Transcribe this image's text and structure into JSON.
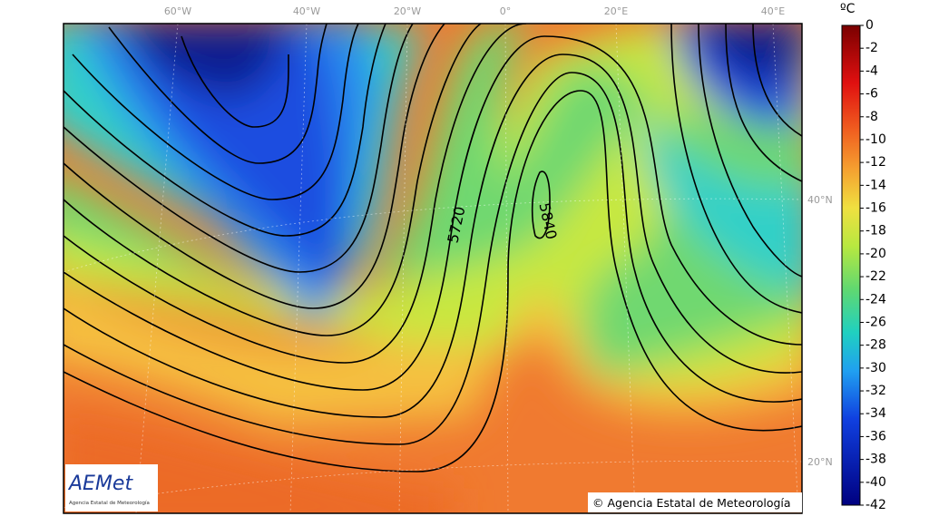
{
  "map": {
    "longitude_labels": [
      "60°W",
      "40°W",
      "20°W",
      "0°",
      "20°E",
      "40°E"
    ],
    "latitude_labels": [
      "40°N",
      "20°N"
    ],
    "contour_labels": [
      "5720",
      "5840"
    ],
    "colorbar": {
      "unit": "ºC",
      "ticks": [
        0,
        -2,
        -4,
        -6,
        -8,
        -10,
        -12,
        -14,
        -16,
        -18,
        -20,
        -22,
        -24,
        -26,
        -28,
        -30,
        -32,
        -34,
        -36,
        -38,
        -40,
        -42
      ]
    },
    "logo": {
      "name": "AEMet",
      "subtitle": "Agencia Estatal de Meteorología"
    },
    "copyright": "© Agencia Estatal de Meteorología"
  }
}
